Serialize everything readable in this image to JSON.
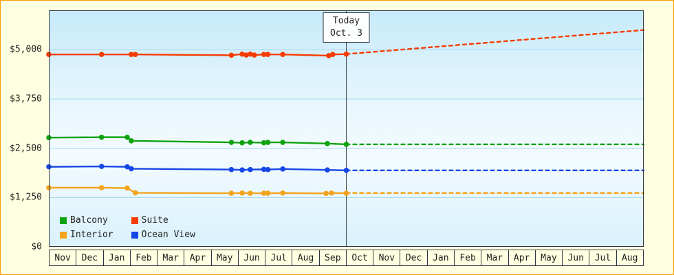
{
  "frame": {
    "background": "#ffffe1",
    "border_color": "#ff9a00"
  },
  "chart_data": {
    "type": "line",
    "title": "",
    "x_axis": {
      "labels": [
        "Nov",
        "Dec",
        "Jan",
        "Feb",
        "Mar",
        "Apr",
        "May",
        "Jun",
        "Jul",
        "Aug",
        "Sep",
        "Oct",
        "Nov",
        "Dec",
        "Jan",
        "Feb",
        "Mar",
        "Apr",
        "May",
        "Jun",
        "Jul",
        "Aug"
      ]
    },
    "y_axis": {
      "ylim": [
        0,
        6000
      ],
      "ticks": [
        {
          "value": 0,
          "label": "$0"
        },
        {
          "value": 1250,
          "label": "$1,250"
        },
        {
          "value": 2500,
          "label": "$2,500"
        },
        {
          "value": 3750,
          "label": "$3,750"
        },
        {
          "value": 5000,
          "label": "$5,000"
        }
      ]
    },
    "grid": {
      "color": "#a4d7ed",
      "horizontal_only": true
    },
    "today_marker": {
      "label_line1": "Today",
      "label_line2": "Oct. 3",
      "x_months": 11.0,
      "line_color": "#3f454d"
    },
    "series": [
      {
        "name": "Suite",
        "color": "#f63c00",
        "solid": [
          [
            0,
            4880
          ],
          [
            1.95,
            4880
          ],
          [
            3.05,
            4880
          ],
          [
            3.2,
            4880
          ],
          [
            6.75,
            4860
          ],
          [
            7.15,
            4890
          ],
          [
            7.3,
            4865
          ],
          [
            7.45,
            4890
          ],
          [
            7.6,
            4865
          ],
          [
            7.95,
            4880
          ],
          [
            8.1,
            4880
          ],
          [
            8.65,
            4880
          ],
          [
            10.35,
            4850
          ],
          [
            10.5,
            4880
          ],
          [
            11,
            4890
          ]
        ],
        "forecast": [
          [
            11,
            4890
          ],
          [
            22,
            5500
          ]
        ]
      },
      {
        "name": "Balcony",
        "color": "#0fa30f",
        "solid": [
          [
            0,
            2770
          ],
          [
            1.95,
            2780
          ],
          [
            2.9,
            2780
          ],
          [
            3.05,
            2690
          ],
          [
            6.75,
            2650
          ],
          [
            7.15,
            2640
          ],
          [
            7.45,
            2650
          ],
          [
            7.95,
            2640
          ],
          [
            8.1,
            2650
          ],
          [
            8.65,
            2650
          ],
          [
            10.3,
            2620
          ],
          [
            11,
            2600
          ]
        ],
        "forecast": [
          [
            11,
            2600
          ],
          [
            22,
            2600
          ]
        ]
      },
      {
        "name": "Ocean View",
        "color": "#1646e6",
        "solid": [
          [
            0,
            2030
          ],
          [
            1.95,
            2040
          ],
          [
            2.9,
            2030
          ],
          [
            3.05,
            1980
          ],
          [
            6.75,
            1960
          ],
          [
            7.15,
            1950
          ],
          [
            7.45,
            1960
          ],
          [
            7.95,
            1965
          ],
          [
            8.1,
            1960
          ],
          [
            8.65,
            1975
          ],
          [
            10.3,
            1950
          ],
          [
            11,
            1940
          ]
        ],
        "forecast": [
          [
            11,
            1940
          ],
          [
            22,
            1940
          ]
        ]
      },
      {
        "name": "Interior",
        "color": "#f4a41c",
        "solid": [
          [
            0,
            1500
          ],
          [
            1.95,
            1500
          ],
          [
            2.9,
            1490
          ],
          [
            3.2,
            1370
          ],
          [
            6.75,
            1360
          ],
          [
            7.15,
            1365
          ],
          [
            7.45,
            1360
          ],
          [
            7.95,
            1360
          ],
          [
            8.1,
            1360
          ],
          [
            8.65,
            1365
          ],
          [
            10.25,
            1355
          ],
          [
            10.45,
            1365
          ],
          [
            11,
            1360
          ]
        ],
        "forecast": [
          [
            11,
            1365
          ],
          [
            22,
            1365
          ]
        ]
      }
    ],
    "legend": [
      {
        "label": "Balcony",
        "color": "#0fa30f"
      },
      {
        "label": "Suite",
        "color": "#f63c00"
      },
      {
        "label": "Interior",
        "color": "#f4a41c"
      },
      {
        "label": "Ocean View",
        "color": "#1646e6"
      }
    ]
  }
}
